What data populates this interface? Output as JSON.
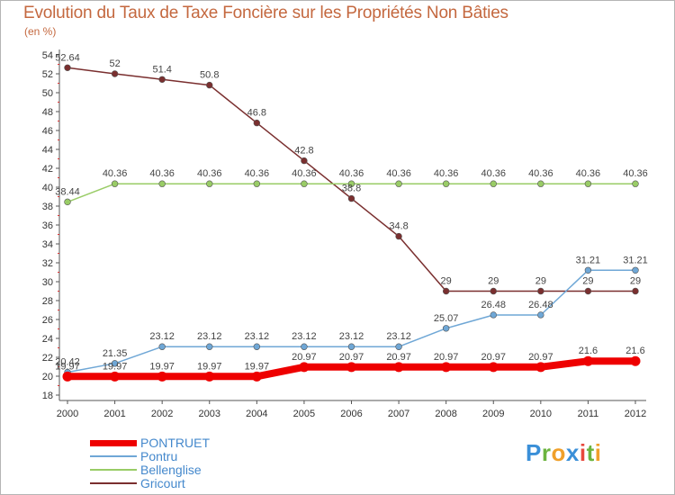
{
  "title": "Evolution du Taux de Taxe Foncière sur les Propriétés Non Bâties",
  "unit_label": "(en %)",
  "logo_text": "Proxiti",
  "chart_data": {
    "type": "line",
    "title": "Evolution du Taux de Taxe Foncière sur les Propriétés Non Bâties",
    "ylabel": "(en %)",
    "xlabel": "",
    "x": [
      "2000",
      "2001",
      "2002",
      "2003",
      "2004",
      "2005",
      "2006",
      "2007",
      "2008",
      "2009",
      "2010",
      "2011",
      "2012"
    ],
    "ylim": [
      18,
      54
    ],
    "yticks": [
      "18",
      "20",
      "22",
      "24",
      "26",
      "28",
      "30",
      "32",
      "34",
      "36",
      "38",
      "40",
      "42",
      "44",
      "46",
      "48",
      "50",
      "52",
      "54"
    ],
    "grid": false,
    "legend_position": "bottom-left",
    "series": [
      {
        "name": "PONTRUET",
        "color": "#ee0000",
        "values": [
          19.97,
          19.97,
          19.97,
          19.97,
          19.97,
          20.97,
          20.97,
          20.97,
          20.97,
          20.97,
          20.97,
          21.6,
          21.6
        ],
        "labels": [
          "19.97",
          "19.97",
          "19.97",
          "19.97",
          "19.97",
          "20.97",
          "20.97",
          "20.97",
          "20.97",
          "20.97",
          "20.97",
          "21.6",
          "21.6"
        ]
      },
      {
        "name": "Pontru",
        "color": "#6fa7d6",
        "values": [
          20.42,
          21.35,
          23.12,
          23.12,
          23.12,
          23.12,
          23.12,
          23.12,
          25.07,
          26.48,
          26.48,
          31.21,
          31.21
        ],
        "labels": [
          "20.42",
          "21.35",
          "23.12",
          "23.12",
          "23.12",
          "23.12",
          "23.12",
          "23.12",
          "25.07",
          "26.48",
          "26.48",
          "31.21",
          "31.21"
        ]
      },
      {
        "name": "Bellenglise",
        "color": "#99cc66",
        "values": [
          38.44,
          40.36,
          40.36,
          40.36,
          40.36,
          40.36,
          40.36,
          40.36,
          40.36,
          40.36,
          40.36,
          40.36,
          40.36
        ],
        "labels": [
          "38.44",
          "40.36",
          "40.36",
          "40.36",
          "40.36",
          "40.36",
          "40.36",
          "40.36",
          "40.36",
          "40.36",
          "40.36",
          "40.36",
          "40.36"
        ]
      },
      {
        "name": "Gricourt",
        "color": "#7a2f2f",
        "values": [
          52.64,
          52,
          51.4,
          50.8,
          46.8,
          42.8,
          38.8,
          34.8,
          29,
          29,
          29,
          29,
          29
        ],
        "labels": [
          "52.64",
          "52",
          "51.4",
          "50.8",
          "46.8",
          "42.8",
          "38.8",
          "34.8",
          "29",
          "29",
          "29",
          "29",
          "29"
        ]
      }
    ]
  }
}
